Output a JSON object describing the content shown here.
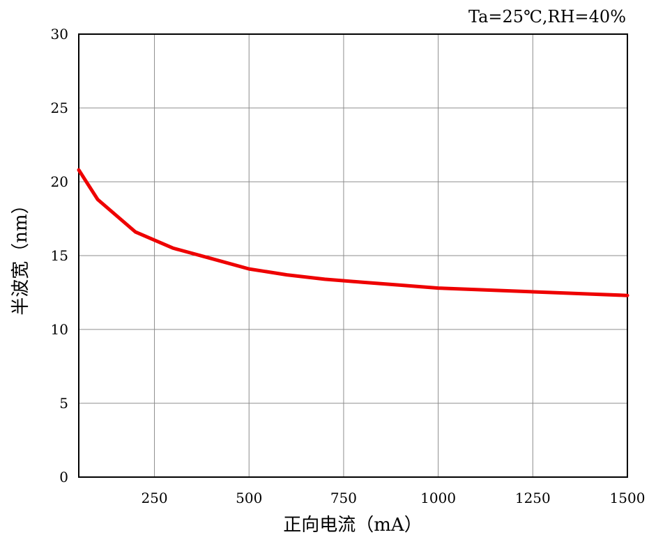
{
  "chart_data": {
    "type": "line",
    "annotation": "Ta=25℃,RH=40%",
    "xlabel": "正向电流（mA）",
    "ylabel": "半波宽（nm）",
    "xlim": [
      50,
      1500
    ],
    "ylim": [
      0,
      30
    ],
    "x_ticks": [
      250,
      500,
      750,
      1000,
      1250,
      1500
    ],
    "y_ticks": [
      0,
      5,
      10,
      15,
      20,
      25,
      30
    ],
    "grid": true,
    "series": [
      {
        "color": "#ee0000",
        "x": [
          50,
          100,
          200,
          300,
          400,
          500,
          600,
          700,
          800,
          900,
          1000,
          1100,
          1200,
          1300,
          1400,
          1500
        ],
        "y": [
          20.8,
          18.8,
          16.6,
          15.5,
          14.8,
          14.1,
          13.7,
          13.4,
          13.2,
          13.0,
          12.8,
          12.7,
          12.6,
          12.5,
          12.4,
          12.3
        ]
      }
    ]
  }
}
